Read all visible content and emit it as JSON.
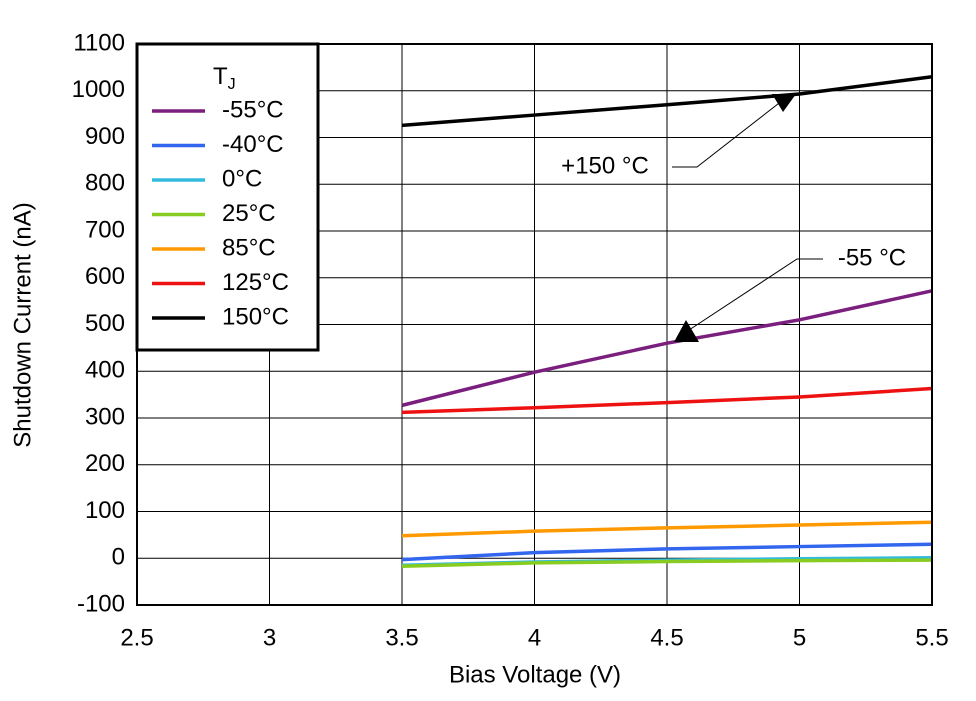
{
  "chart_data": {
    "type": "line",
    "xlabel": "Bias Voltage (V)",
    "ylabel": "Shutdown Current (nA)",
    "x": [
      3.5,
      4,
      4.5,
      5,
      5.5
    ],
    "series": [
      {
        "name": "-55°C",
        "color": "#7b1f7f",
        "values": [
          327,
          398,
          460,
          510,
          572
        ]
      },
      {
        "name": "-40°C",
        "color": "#3366ee",
        "values": [
          -3,
          12,
          20,
          25,
          30
        ]
      },
      {
        "name": "0°C",
        "color": "#33bbdd",
        "values": [
          -15,
          -8,
          -4,
          -1,
          1
        ]
      },
      {
        "name": "25°C",
        "color": "#88cc22",
        "values": [
          -17,
          -10,
          -7,
          -5,
          -4
        ]
      },
      {
        "name": "85°C",
        "color": "#ff9900",
        "values": [
          48,
          58,
          65,
          71,
          77
        ]
      },
      {
        "name": "125°C",
        "color": "#ee1111",
        "values": [
          312,
          322,
          333,
          345,
          363
        ]
      },
      {
        "name": "150°C",
        "color": "#000000",
        "values": [
          926,
          948,
          970,
          993,
          1030
        ]
      }
    ],
    "legend_title": "T",
    "legend_title_subscript": "J",
    "legend_position": "upper left",
    "annotations": [
      "+150 °C",
      "-55 °C"
    ],
    "xlim": [
      2.5,
      5.5
    ],
    "xticks": [
      2.5,
      3,
      3.5,
      4,
      4.5,
      5,
      5.5
    ],
    "ylim": [
      -100,
      1100
    ],
    "yticks": [
      -100,
      0,
      100,
      200,
      300,
      400,
      500,
      600,
      700,
      800,
      900,
      1000,
      1100
    ],
    "grid": true
  }
}
